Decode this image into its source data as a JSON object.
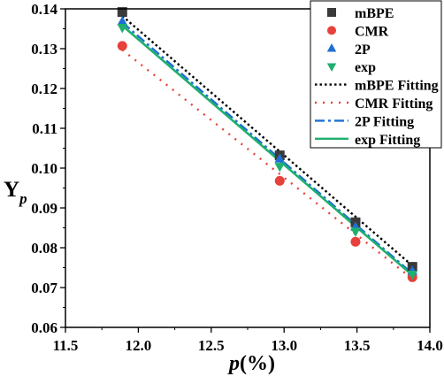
{
  "chart_data": {
    "type": "scatter",
    "xlabel_italic": "p",
    "xlabel_rest": "(%)",
    "ylabel_main": "Y",
    "ylabel_sub": "p",
    "xlim": [
      11.5,
      14.0
    ],
    "ylim": [
      0.06,
      0.14
    ],
    "xticks": [
      "11.5",
      "12.0",
      "12.5",
      "13.0",
      "13.5",
      "14.0"
    ],
    "xtick_values": [
      11.5,
      12.0,
      12.5,
      13.0,
      13.5,
      14.0
    ],
    "yticks": [
      "0.06",
      "0.07",
      "0.08",
      "0.09",
      "0.10",
      "0.11",
      "0.12",
      "0.13",
      "0.14"
    ],
    "ytick_values": [
      0.06,
      0.07,
      0.08,
      0.09,
      0.1,
      0.11,
      0.12,
      0.13,
      0.14
    ],
    "grid": false,
    "legend_position": "top-right",
    "series": [
      {
        "name": "mBPE",
        "marker": "square",
        "color": "#3a3a3a",
        "x": [
          11.89,
          12.97,
          13.49,
          13.88
        ],
        "y": [
          0.1392,
          0.1032,
          0.0864,
          0.0752
        ]
      },
      {
        "name": "CMR",
        "marker": "circle",
        "color": "#e8403a",
        "x": [
          11.89,
          12.97,
          13.49,
          13.88
        ],
        "y": [
          0.1307,
          0.0968,
          0.0815,
          0.0726
        ]
      },
      {
        "name": "2P",
        "marker": "triangle-up",
        "color": "#1f6fd4",
        "x": [
          11.89,
          12.97,
          13.49,
          13.88
        ],
        "y": [
          0.1368,
          0.1023,
          0.0852,
          0.0741
        ]
      },
      {
        "name": "exp",
        "marker": "triangle-down",
        "color": "#1faf6e",
        "x": [
          11.89,
          12.97,
          13.49,
          13.88
        ],
        "y": [
          0.1353,
          0.1004,
          0.0841,
          0.0733
        ]
      }
    ],
    "fits": [
      {
        "name": "mBPE Fitting",
        "style": "dotted-dense",
        "color": "#000000",
        "x": [
          11.89,
          13.88
        ],
        "y": [
          0.1382,
          0.0755
        ]
      },
      {
        "name": "CMR Fitting",
        "style": "dotted-sparse",
        "color": "#e8403a",
        "x": [
          11.89,
          13.88
        ],
        "y": [
          0.1297,
          0.0722
        ]
      },
      {
        "name": "2P Fitting",
        "style": "dash-dot",
        "color": "#1f6fd4",
        "x": [
          11.89,
          13.88
        ],
        "y": [
          0.1366,
          0.0735
        ]
      },
      {
        "name": "exp Fitting",
        "style": "solid",
        "color": "#1faf6e",
        "x": [
          11.89,
          13.88
        ],
        "y": [
          0.1358,
          0.0731
        ]
      }
    ]
  }
}
